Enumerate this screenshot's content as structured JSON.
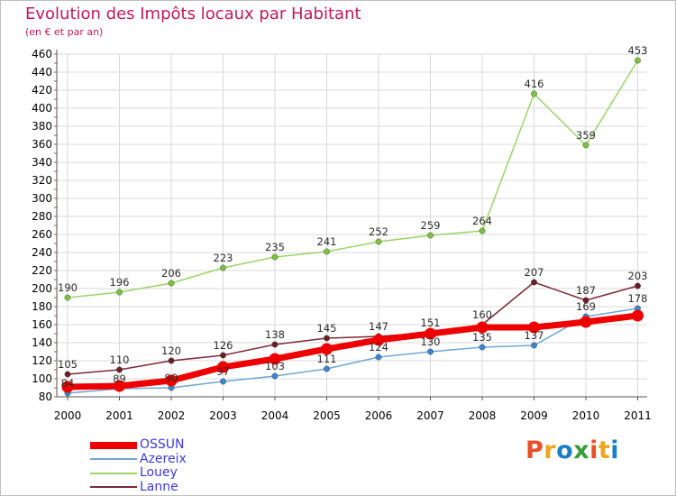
{
  "title": "Evolution des Impôts locaux par Habitant",
  "subtitle": "(en € et par an)",
  "logo": {
    "text": "Proxiti",
    "colors": [
      "#e9502a",
      "#f0a51e",
      "#1a7fc4",
      "#3a9c3a",
      "#e9502a",
      "#f0a51e",
      "#1a7fc4"
    ]
  },
  "chart_data": {
    "type": "line",
    "title": "Evolution des Impôts locaux par Habitant",
    "subtitle": "(en € et par an)",
    "xlabel": "",
    "ylabel": "",
    "categories": [
      "2000",
      "2001",
      "2002",
      "2003",
      "2004",
      "2005",
      "2006",
      "2007",
      "2008",
      "2009",
      "2010",
      "2011"
    ],
    "ylim": [
      80,
      460
    ],
    "yticks": [
      "80",
      "100",
      "120",
      "140",
      "160",
      "180",
      "200",
      "220",
      "240",
      "260",
      "280",
      "300",
      "320",
      "340",
      "360",
      "380",
      "400",
      "420",
      "440",
      "460"
    ],
    "grid": true,
    "legend_position": "bottom-left",
    "series": [
      {
        "name": "OSSUN",
        "color": "#ee0000",
        "marker": "#ee0000",
        "width": 7,
        "labels": false,
        "values": [
          91,
          92,
          98,
          113,
          122,
          133,
          143,
          150,
          157,
          157,
          163,
          170
        ]
      },
      {
        "name": "Azereix",
        "color": "#6fa6d3",
        "marker": "#3a86cf",
        "width": 1.5,
        "labels": true,
        "values": [
          84,
          89,
          90,
          97,
          103,
          111,
          124,
          130,
          135,
          137,
          169,
          178
        ]
      },
      {
        "name": "Louey",
        "color": "#9ad46a",
        "marker": "#7cc33d",
        "width": 1.5,
        "labels": true,
        "values": [
          190,
          196,
          206,
          223,
          235,
          241,
          252,
          259,
          264,
          416,
          359,
          453
        ]
      },
      {
        "name": "Lanne",
        "color": "#7a2a36",
        "marker": "#6b1d24",
        "width": 1.5,
        "labels": true,
        "values": [
          105,
          110,
          120,
          126,
          138,
          145,
          147,
          151,
          160,
          207,
          187,
          203
        ]
      }
    ]
  }
}
